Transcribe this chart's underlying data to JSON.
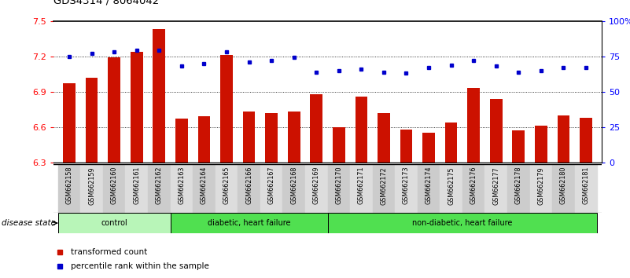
{
  "title": "GDS4314 / 8064042",
  "samples": [
    "GSM662158",
    "GSM662159",
    "GSM662160",
    "GSM662161",
    "GSM662162",
    "GSM662163",
    "GSM662164",
    "GSM662165",
    "GSM662166",
    "GSM662167",
    "GSM662168",
    "GSM662169",
    "GSM662170",
    "GSM662171",
    "GSM662172",
    "GSM662173",
    "GSM662174",
    "GSM662175",
    "GSM662176",
    "GSM662177",
    "GSM662178",
    "GSM662179",
    "GSM662180",
    "GSM662181"
  ],
  "bar_values": [
    6.97,
    7.02,
    7.19,
    7.24,
    7.43,
    6.67,
    6.69,
    7.21,
    6.73,
    6.72,
    6.73,
    6.88,
    6.6,
    6.86,
    6.72,
    6.58,
    6.55,
    6.64,
    6.93,
    6.84,
    6.57,
    6.61,
    6.7,
    6.68
  ],
  "dot_values": [
    75,
    77,
    78,
    79,
    79,
    68,
    70,
    78,
    71,
    72,
    74,
    64,
    65,
    66,
    64,
    63,
    67,
    69,
    72,
    68,
    64,
    65,
    67,
    67
  ],
  "bar_color": "#cc1100",
  "dot_color": "#0000cc",
  "ylim_left": [
    6.3,
    7.5
  ],
  "ylim_right": [
    0,
    100
  ],
  "yticks_left": [
    6.3,
    6.6,
    6.9,
    7.2,
    7.5
  ],
  "yticks_right": [
    0,
    25,
    50,
    75,
    100
  ],
  "ytick_labels_right": [
    "0",
    "25",
    "50",
    "75",
    "100%"
  ],
  "grid_values": [
    6.6,
    6.9,
    7.2
  ],
  "group_data": [
    {
      "start": 0,
      "end": 4,
      "label": "control",
      "color": "#b8f5b8"
    },
    {
      "start": 5,
      "end": 11,
      "label": "diabetic, heart failure",
      "color": "#50e050"
    },
    {
      "start": 12,
      "end": 23,
      "label": "non-diabetic, heart failure",
      "color": "#50e050"
    }
  ],
  "disease_state_label": "disease state",
  "legend_bar": "transformed count",
  "legend_dot": "percentile rank within the sample",
  "xlabel_bg_even": "#cccccc",
  "xlabel_bg_odd": "#dddddd"
}
